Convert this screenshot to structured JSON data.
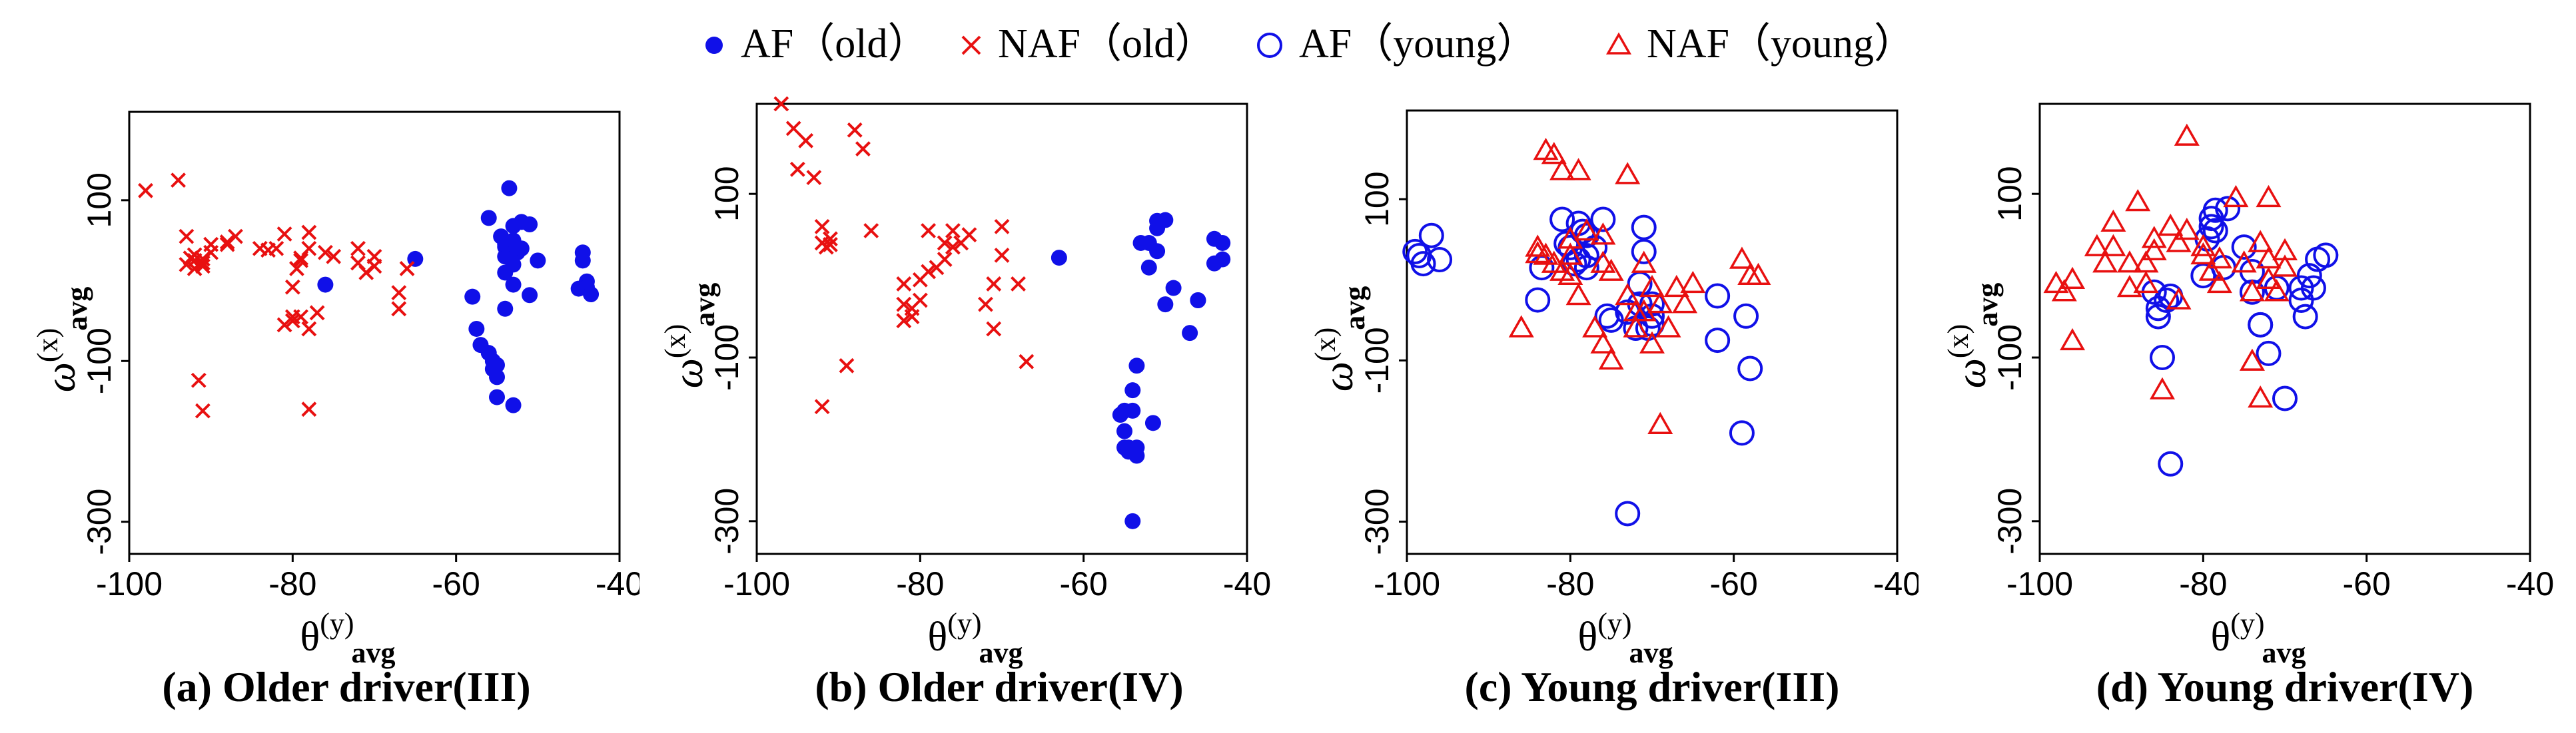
{
  "legend": [
    {
      "label": "AF（old）",
      "marker": "dot",
      "color": "#1010e8"
    },
    {
      "label": "NAF（old）",
      "marker": "x",
      "color": "#e81010"
    },
    {
      "label": "AF（young）",
      "marker": "circle",
      "color": "#1010e8"
    },
    {
      "label": "NAF（young）",
      "marker": "triangle",
      "color": "#e81010"
    }
  ],
  "chart_data": [
    {
      "type": "scatter",
      "caption": "(a) Older driver(III)",
      "xlabel": "θ(y)avg",
      "xlabel_main": "θ",
      "xlabel_sup": "(y)",
      "xlabel_sub": "avg",
      "ylabel": "ω(x)avg",
      "ylabel_main": "ω",
      "ylabel_sup": "(x)",
      "ylabel_sub": "avg",
      "xlim": [
        -100,
        -40
      ],
      "ylim": [
        -340,
        210
      ],
      "xticks": [
        -100,
        -80,
        -60,
        -40
      ],
      "xtick_labels": [
        "-100",
        "-80",
        "-60",
        "-40"
      ],
      "yticks": [
        100,
        -100,
        -300
      ],
      "ytick_labels": [
        "100",
        "-100",
        "-300"
      ],
      "series": [
        {
          "name": "AF（old）",
          "marker": "dot",
          "color": "#1010e8",
          "x": [
            -76,
            -65,
            -58,
            -57.5,
            -57,
            -56,
            -56,
            -55.5,
            -55.5,
            -55,
            -55,
            -55,
            -54.5,
            -54,
            -54,
            -54,
            -54,
            -54,
            -53.5,
            -53,
            -53,
            -53,
            -53,
            -53,
            -52.5,
            -52,
            -52,
            -51,
            -51,
            -50,
            -45,
            -44.5,
            -44.5,
            -44,
            -44,
            -43.5
          ],
          "y": [
            -5,
            27,
            -20,
            -60,
            -80,
            -90,
            78,
            -100,
            -110,
            -105,
            -145,
            -120,
            55,
            42,
            10,
            30,
            45,
            -35,
            115,
            -5,
            50,
            68,
            -155,
            20,
            35,
            40,
            73,
            70,
            -18,
            25,
            -10,
            25,
            35,
            -1,
            -8,
            -17
          ]
        },
        {
          "name": "NAF（old）",
          "marker": "x",
          "color": "#e81010",
          "x": [
            -98,
            -94,
            -93,
            -93,
            -92.5,
            -92,
            -92,
            -92,
            -91.5,
            -91,
            -91,
            -91,
            -91,
            -90,
            -90,
            -88,
            -88,
            -87,
            -84,
            -83,
            -82,
            -81,
            -81,
            -80,
            -80,
            -80,
            -79.5,
            -79,
            -79,
            -79,
            -78,
            -78,
            -78,
            -78,
            -77,
            -76,
            -75,
            -72,
            -72,
            -71,
            -70,
            -70,
            -67,
            -67,
            -66
          ],
          "y": [
            112,
            125,
            55,
            20,
            28,
            32,
            15,
            25,
            -124,
            22,
            -162,
            18,
            27,
            45,
            35,
            48,
            45,
            55,
            40,
            38,
            40,
            -55,
            58,
            -45,
            -8,
            -50,
            15,
            28,
            -45,
            25,
            60,
            40,
            -60,
            -160,
            -40,
            35,
            30,
            40,
            22,
            10,
            18,
            30,
            -35,
            -15,
            15
          ]
        }
      ]
    },
    {
      "type": "scatter",
      "caption": "(b) Older driver(IV)",
      "xlabel": "θ(y)avg",
      "xlabel_main": "θ",
      "xlabel_sup": "(y)",
      "xlabel_sub": "avg",
      "ylabel": "ω(x)avg",
      "ylabel_main": "ω",
      "ylabel_sup": "(x)",
      "ylabel_sub": "avg",
      "xlim": [
        -100,
        -40
      ],
      "ylim": [
        -340,
        210
      ],
      "xticks": [
        -100,
        -80,
        -60,
        -40
      ],
      "xtick_labels": [
        "-100",
        "-80",
        "-60",
        "-40"
      ],
      "yticks": [
        100,
        -100,
        -300
      ],
      "ytick_labels": [
        "100",
        "-100",
        "-300"
      ],
      "series": [
        {
          "name": "AF（old）",
          "marker": "dot",
          "color": "#1010e8",
          "x": [
            -63,
            -55.5,
            -55,
            -55,
            -55,
            -54.5,
            -54.5,
            -54,
            -54,
            -54,
            -53.5,
            -53.5,
            -53.5,
            -53,
            -52,
            -52,
            -51.5,
            -51,
            -51,
            -51,
            -50,
            -50,
            -49,
            -47,
            -46,
            -46,
            -44,
            -44,
            -43,
            -43
          ],
          "y": [
            22,
            -170,
            -165,
            -190,
            -210,
            -215,
            -210,
            -300,
            -165,
            -140,
            -220,
            -210,
            -110,
            40,
            40,
            10,
            -180,
            67,
            30,
            58,
            68,
            -35,
            -15,
            -70,
            -30,
            -30,
            45,
            15,
            20,
            40
          ]
        },
        {
          "name": "NAF（old）",
          "marker": "x",
          "color": "#e81010",
          "x": [
            -97,
            -95.5,
            -95,
            -94,
            -93,
            -92,
            -92,
            -92,
            -91.5,
            -91,
            -91,
            -89,
            -88,
            -87,
            -86,
            -82,
            -82,
            -82,
            -81,
            -81,
            -80,
            -80,
            -79,
            -79,
            -78,
            -77,
            -77,
            -76,
            -76,
            -75,
            -74,
            -72,
            -71,
            -71,
            -70,
            -70,
            -68,
            -67
          ],
          "y": [
            210,
            180,
            130,
            165,
            120,
            60,
            -160,
            40,
            35,
            45,
            38,
            -110,
            178,
            155,
            55,
            -35,
            -10,
            -55,
            -50,
            -40,
            -30,
            -5,
            5,
            55,
            10,
            20,
            40,
            35,
            55,
            40,
            50,
            -35,
            -10,
            -65,
            25,
            60,
            -10,
            -105
          ]
        }
      ]
    },
    {
      "type": "scatter",
      "caption": "(c) Young driver(III)",
      "xlabel": "θ(y)avg",
      "xlabel_main": "θ",
      "xlabel_sup": "(y)",
      "xlabel_sub": "avg",
      "ylabel": "ω(x)avg",
      "ylabel_main": "ω",
      "ylabel_sup": "(x)",
      "ylabel_sub": "avg",
      "xlim": [
        -100,
        -40
      ],
      "ylim": [
        -340,
        210
      ],
      "xticks": [
        -100,
        -80,
        -60,
        -40
      ],
      "xtick_labels": [
        "-100",
        "-80",
        "-60",
        "-40"
      ],
      "yticks": [
        100,
        -100,
        -300
      ],
      "ytick_labels": [
        "100",
        "-100",
        "-300"
      ],
      "series": [
        {
          "name": "AF（young）",
          "marker": "circle",
          "color": "#1010e8",
          "x": [
            -99,
            -98.5,
            -98,
            -97,
            -96,
            -84,
            -83.5,
            -81,
            -80.5,
            -80,
            -79.5,
            -79,
            -79,
            -78.5,
            -78,
            -78,
            -78,
            -77,
            -76,
            -75.5,
            -75,
            -73,
            -73,
            -72,
            -71.5,
            -71.5,
            -71,
            -71,
            -70.5,
            -70,
            -70,
            -70,
            -62,
            -62,
            -59,
            -58.5,
            -58
          ],
          "y": [
            35,
            30,
            20,
            55,
            25,
            -25,
            15,
            75,
            45,
            40,
            20,
            25,
            70,
            60,
            15,
            55,
            30,
            40,
            75,
            -45,
            -50,
            -290,
            -40,
            -60,
            -30,
            -5,
            35,
            65,
            -60,
            -45,
            -55,
            -30,
            -20,
            -75,
            -190,
            -45,
            -110
          ]
        },
        {
          "name": "NAF（young）",
          "marker": "triangle",
          "color": "#e81010",
          "x": [
            -86,
            -84,
            -84,
            -83,
            -83,
            -82,
            -82,
            -81,
            -81,
            -80,
            -80,
            -80,
            -79,
            -79,
            -78,
            -77,
            -76,
            -76,
            -76,
            -75,
            -75,
            -73,
            -73,
            -72,
            -72,
            -71,
            -71,
            -70,
            -70,
            -69,
            -69,
            -68,
            -67,
            -66,
            -65,
            -59,
            -58,
            -57
          ],
          "y": [
            -60,
            40,
            32,
            30,
            160,
            155,
            20,
            135,
            10,
            50,
            30,
            5,
            -20,
            135,
            60,
            -60,
            55,
            -80,
            20,
            10,
            -100,
            130,
            -20,
            -40,
            -60,
            20,
            -40,
            -80,
            -10,
            -30,
            -180,
            -60,
            -10,
            -30,
            -5,
            25,
            5,
            5
          ]
        }
      ]
    },
    {
      "type": "scatter",
      "caption": "(d) Young driver(IV)",
      "xlabel": "θ(y)avg",
      "xlabel_main": "θ",
      "xlabel_sup": "(y)",
      "xlabel_sub": "avg",
      "ylabel": "ω(x)avg",
      "ylabel_main": "ω",
      "ylabel_sup": "(x)",
      "ylabel_sub": "avg",
      "xlim": [
        -100,
        -40
      ],
      "ylim": [
        -340,
        210
      ],
      "xticks": [
        -100,
        -80,
        -60,
        -40
      ],
      "xtick_labels": [
        "-100",
        "-80",
        "-60",
        "-40"
      ],
      "yticks": [
        100,
        -100,
        -300
      ],
      "ytick_labels": [
        "100",
        "-100",
        "-300"
      ],
      "series": [
        {
          "name": "AF（young）",
          "marker": "circle",
          "color": "#1010e8",
          "x": [
            -86,
            -85.5,
            -85.5,
            -85,
            -84.5,
            -84,
            -84,
            -80,
            -79.5,
            -79,
            -79,
            -78.5,
            -78.5,
            -77.5,
            -77,
            -75,
            -74,
            -74,
            -73,
            -73,
            -72,
            -71,
            -70,
            -68,
            -68,
            -67.5,
            -67,
            -66.5,
            -66,
            -65
          ],
          "y": [
            -20,
            -50,
            -40,
            -100,
            -30,
            -230,
            -25,
            0,
            45,
            60,
            70,
            55,
            80,
            10,
            82,
            35,
            5,
            -20,
            -60,
            -60,
            -95,
            -15,
            -150,
            -30,
            -15,
            -50,
            0,
            -15,
            20,
            25
          ]
        },
        {
          "name": "NAF（young）",
          "marker": "triangle",
          "color": "#e81010",
          "x": [
            -98,
            -97,
            -96,
            -96,
            -93,
            -92,
            -91,
            -91,
            -89,
            -89,
            -88,
            -87,
            -87,
            -86,
            -86,
            -85,
            -84,
            -83,
            -83,
            -82,
            -82,
            -80,
            -80,
            -79,
            -78,
            -78,
            -76,
            -75,
            -74,
            -74,
            -73,
            -73,
            -72,
            -72,
            -72,
            -71,
            -70,
            -70
          ],
          "y": [
            -10,
            -20,
            -5,
            -80,
            35,
            15,
            65,
            35,
            15,
            -15,
            90,
            15,
            -10,
            45,
            30,
            -140,
            60,
            40,
            -30,
            170,
            55,
            35,
            25,
            5,
            -10,
            20,
            95,
            15,
            -20,
            -105,
            40,
            -150,
            20,
            -5,
            95,
            -20,
            30,
            10
          ]
        }
      ]
    }
  ]
}
